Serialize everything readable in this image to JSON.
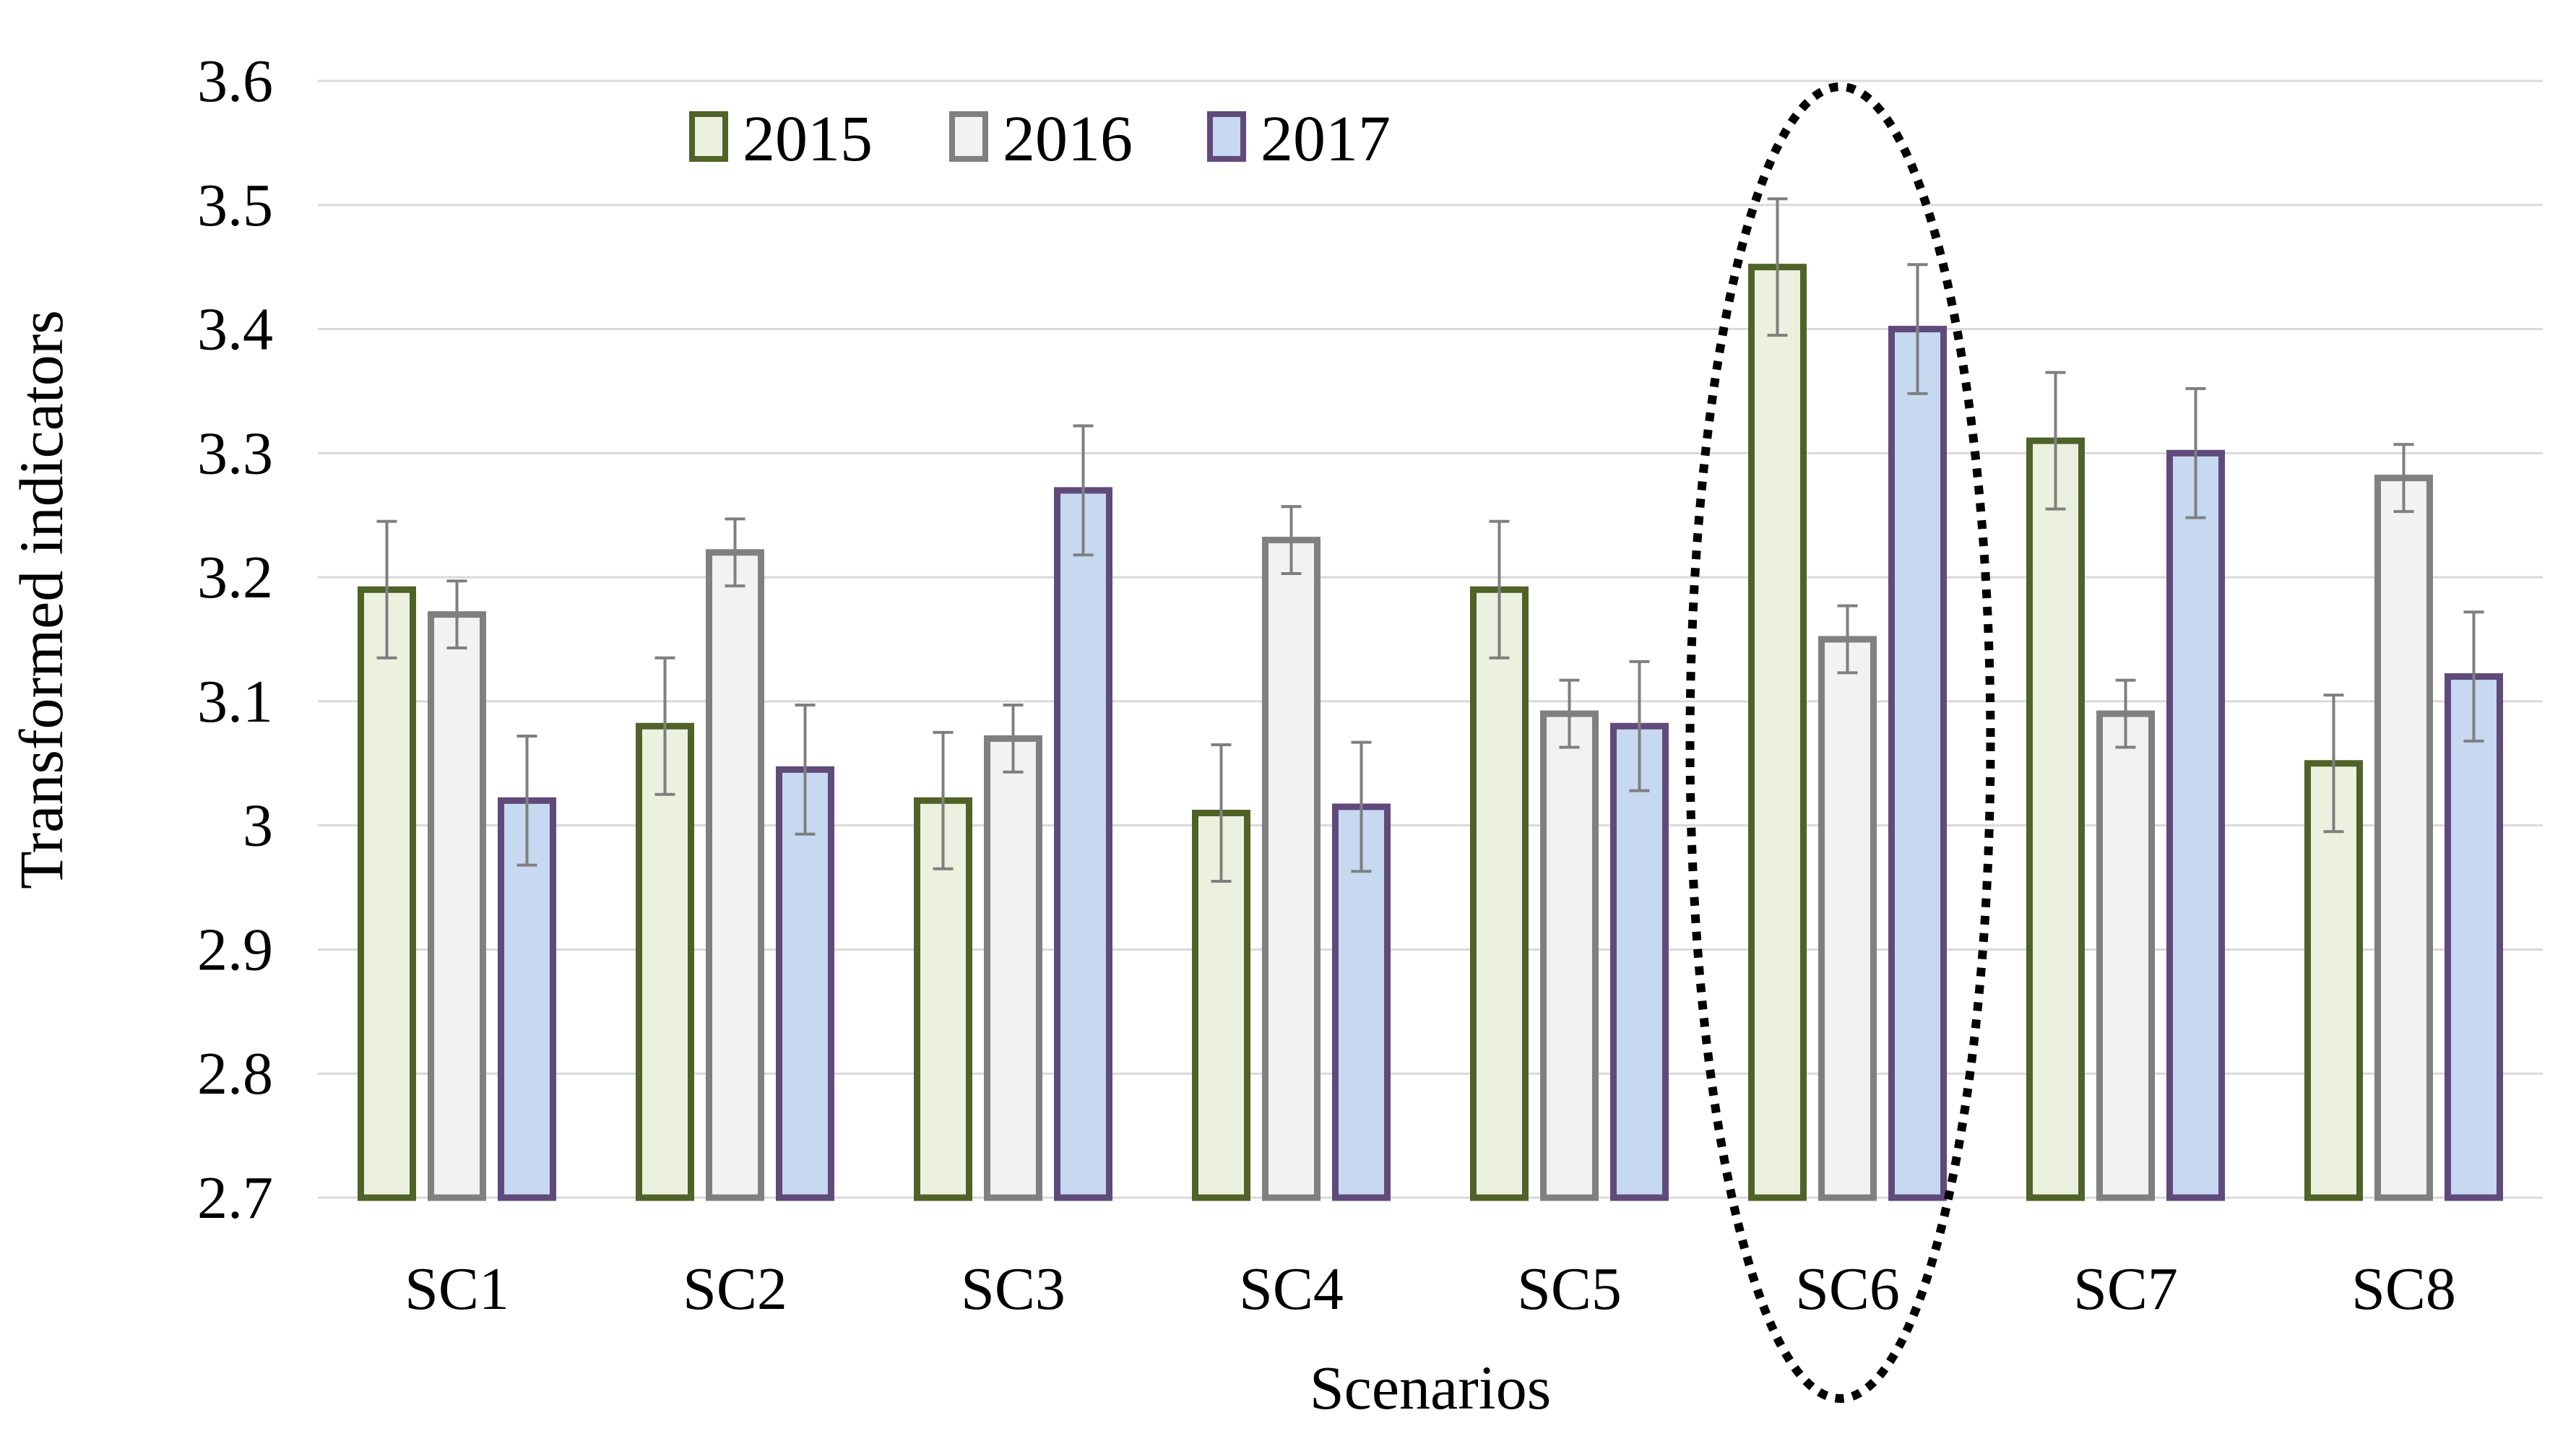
{
  "chart_data": {
    "type": "bar",
    "title": "",
    "xlabel": "Scenarios",
    "ylabel": "Transformed indicators",
    "ylim": [
      2.7,
      3.6
    ],
    "yticks": [
      2.7,
      2.8,
      2.9,
      3.0,
      3.1,
      3.2,
      3.3,
      3.4,
      3.5,
      3.6
    ],
    "ytick_labels": [
      "2.7",
      "2.8",
      "2.9",
      "3",
      "3.1",
      "3.2",
      "3.3",
      "3.4",
      "3.5",
      "3.6"
    ],
    "grid": true,
    "legend_position": "top-left",
    "categories": [
      "SC1",
      "SC2",
      "SC3",
      "SC4",
      "SC5",
      "SC6",
      "SC7",
      "SC8"
    ],
    "series": [
      {
        "name": "2015",
        "fill": "#ebf1de",
        "stroke": "#4f6228",
        "values": [
          3.19,
          3.08,
          3.02,
          3.01,
          3.19,
          3.45,
          3.31,
          3.05
        ],
        "errors": [
          0.055,
          0.055,
          0.055,
          0.055,
          0.055,
          0.055,
          0.055,
          0.055
        ]
      },
      {
        "name": "2016",
        "fill": "#f2f2f2",
        "stroke": "#808080",
        "values": [
          3.17,
          3.22,
          3.07,
          3.23,
          3.09,
          3.15,
          3.09,
          3.28
        ],
        "errors": [
          0.027,
          0.027,
          0.027,
          0.027,
          0.027,
          0.027,
          0.027,
          0.027
        ]
      },
      {
        "name": "2017",
        "fill": "#c6d9f1",
        "stroke": "#604a7b",
        "values": [
          3.02,
          3.045,
          3.27,
          3.015,
          3.08,
          3.4,
          3.3,
          3.12
        ],
        "errors": [
          0.052,
          0.052,
          0.052,
          0.052,
          0.052,
          0.052,
          0.052,
          0.052
        ]
      }
    ],
    "annotations": [
      {
        "type": "dotted-ellipse",
        "target_category": "SC6"
      }
    ],
    "error_bar_color": "#7f7f7f",
    "grid_color": "#d9d9d9"
  }
}
